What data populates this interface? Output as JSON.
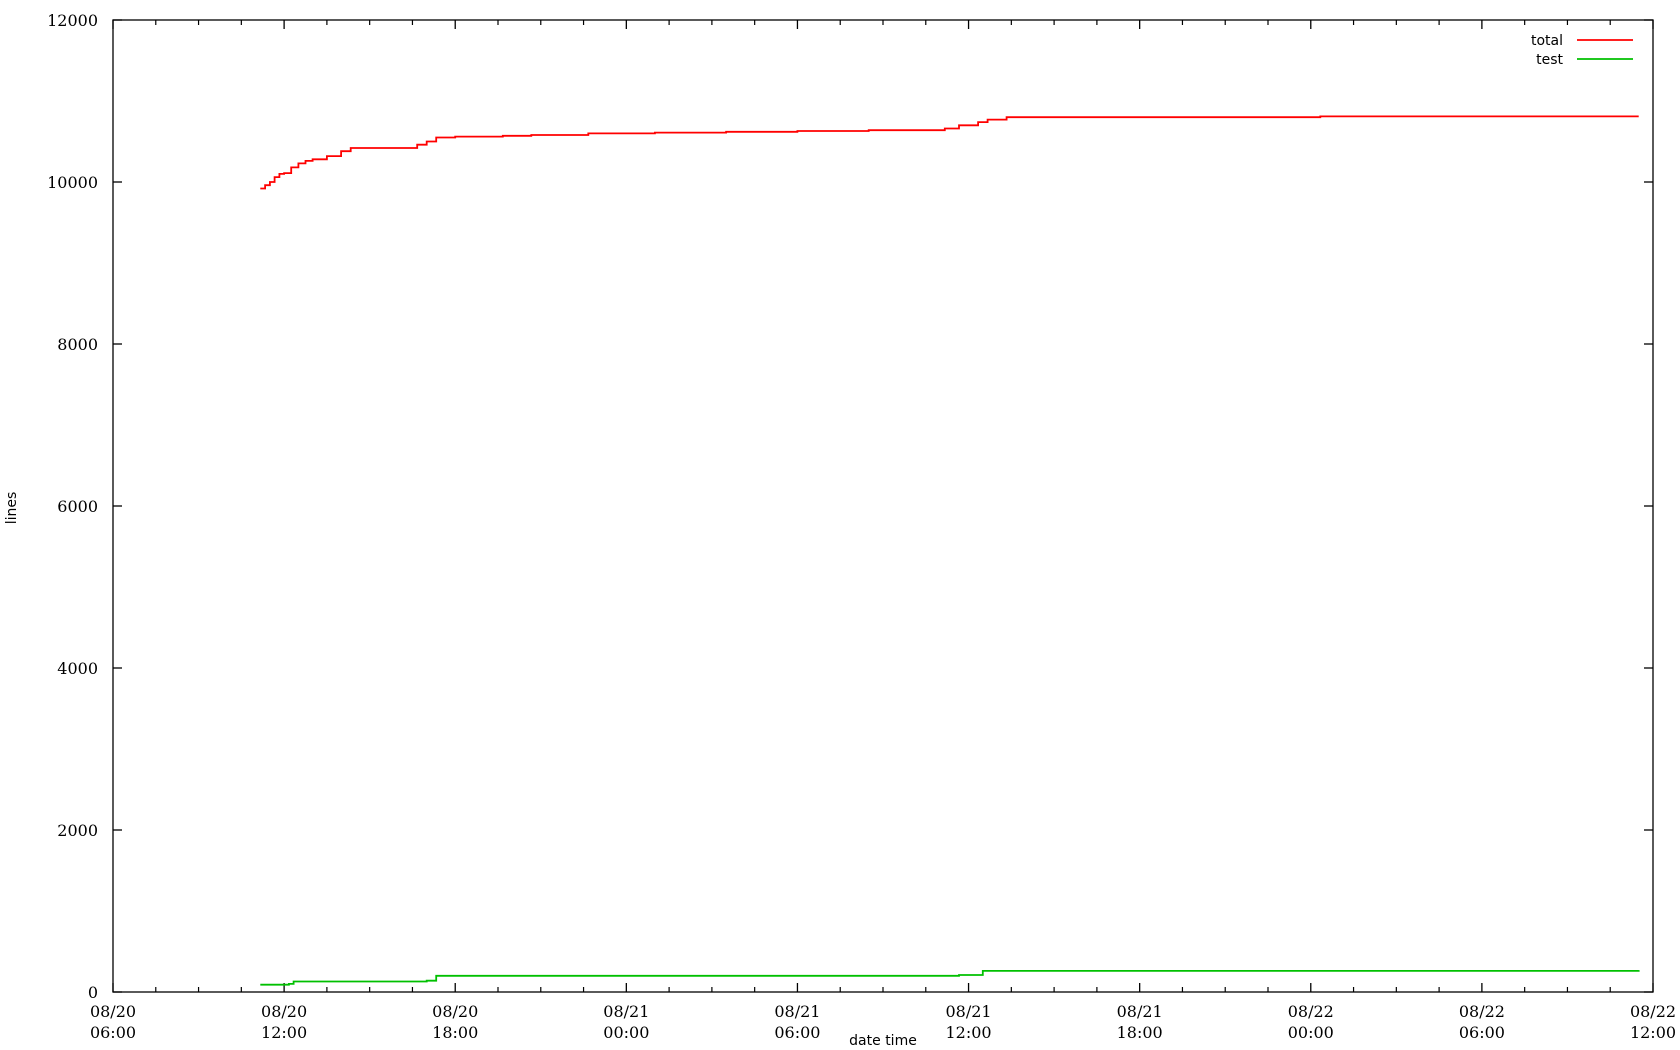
{
  "chart_data": {
    "type": "line",
    "title": "",
    "xlabel": "date time",
    "ylabel": "lines",
    "ylim": [
      0,
      12000
    ],
    "yticks": [
      0,
      2000,
      4000,
      6000,
      8000,
      10000,
      12000
    ],
    "xlim": [
      "08/20 06:00",
      "08/22 12:00"
    ],
    "xticks": [
      {
        "top": "08/20",
        "bottom": "06:00"
      },
      {
        "top": "08/20",
        "bottom": "12:00"
      },
      {
        "top": "08/20",
        "bottom": "18:00"
      },
      {
        "top": "08/21",
        "bottom": "00:00"
      },
      {
        "top": "08/21",
        "bottom": "06:00"
      },
      {
        "top": "08/21",
        "bottom": "12:00"
      },
      {
        "top": "08/21",
        "bottom": "18:00"
      },
      {
        "top": "08/22",
        "bottom": "00:00"
      },
      {
        "top": "08/22",
        "bottom": "06:00"
      },
      {
        "top": "08/22",
        "bottom": "12:00"
      }
    ],
    "minor_ticks_per_major": 3,
    "grid": false,
    "legend_position": "top-right",
    "series": [
      {
        "name": "total",
        "color": "#ff0000",
        "step": true,
        "x": [
          "08/20 11:10",
          "08/20 11:20",
          "08/20 11:30",
          "08/20 11:40",
          "08/20 11:50",
          "08/20 12:00",
          "08/20 12:15",
          "08/20 12:30",
          "08/20 12:45",
          "08/20 13:00",
          "08/20 13:30",
          "08/20 14:00",
          "08/20 14:20",
          "08/20 14:40",
          "08/20 16:40",
          "08/20 17:00",
          "08/20 17:20",
          "08/20 18:00",
          "08/20 19:40",
          "08/20 20:40",
          "08/20 22:40",
          "08/21 01:00",
          "08/21 03:30",
          "08/21 06:00",
          "08/21 08:30",
          "08/21 11:10",
          "08/21 11:40",
          "08/21 12:20",
          "08/21 12:40",
          "08/21 13:20",
          "08/21 19:00",
          "08/22 00:20",
          "08/22 06:00",
          "08/22 11:30"
        ],
        "y": [
          9920,
          9960,
          10000,
          10060,
          10100,
          10110,
          10180,
          10230,
          10260,
          10280,
          10320,
          10380,
          10420,
          10420,
          10460,
          10500,
          10550,
          10560,
          10570,
          10580,
          10600,
          10610,
          10620,
          10630,
          10640,
          10660,
          10700,
          10740,
          10770,
          10800,
          10800,
          10810,
          10810,
          10810
        ]
      },
      {
        "name": "test",
        "color": "#00c000",
        "step": true,
        "x": [
          "08/20 11:10",
          "08/20 12:10",
          "08/20 12:20",
          "08/20 17:00",
          "08/20 17:20",
          "08/21 11:40",
          "08/21 12:30",
          "08/22 11:30"
        ],
        "y": [
          90,
          100,
          130,
          140,
          200,
          210,
          260,
          270
        ]
      }
    ]
  }
}
